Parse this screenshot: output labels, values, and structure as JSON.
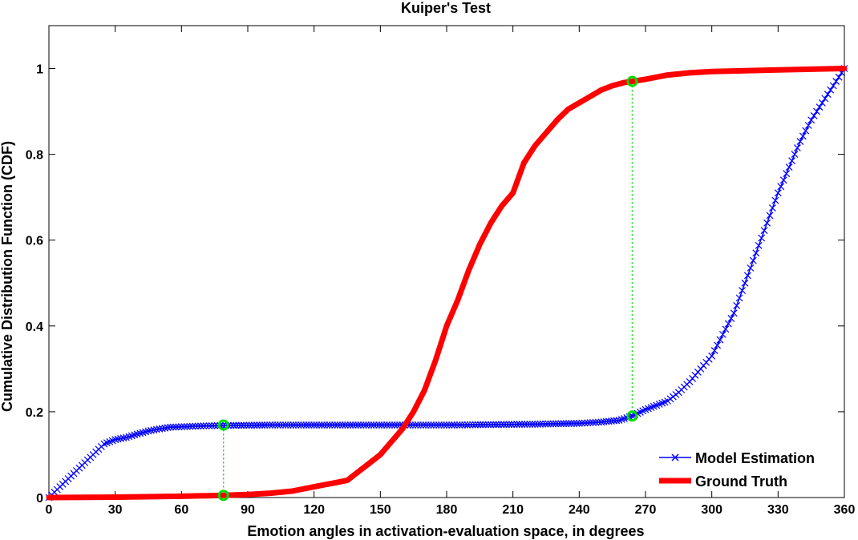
{
  "chart_data": {
    "type": "line",
    "title": "Kuiper's Test",
    "xlabel": "Emotion angles in activation-evaluation space, in degrees",
    "ylabel": "Cumulative Distribution Function (CDF)",
    "xlim": [
      0,
      360
    ],
    "ylim": [
      0,
      1.1
    ],
    "xticks": [
      0,
      30,
      60,
      90,
      120,
      150,
      180,
      210,
      240,
      270,
      300,
      330,
      360
    ],
    "yticks": [
      0,
      0.2,
      0.4,
      0.6,
      0.8,
      1
    ],
    "ytick_labels": [
      "0",
      "0.2",
      "0.4",
      "0.6",
      "0.8",
      "1"
    ],
    "grid": false,
    "legend_position": "bottom-right",
    "series": [
      {
        "name": "Model Estimation",
        "color": "#0000ff",
        "marker": "x",
        "x": [
          0,
          5,
          10,
          15,
          20,
          25,
          30,
          35,
          40,
          45,
          50,
          55,
          60,
          70,
          80,
          100,
          120,
          140,
          160,
          180,
          200,
          220,
          240,
          250,
          258,
          264,
          270,
          275,
          280,
          285,
          290,
          295,
          300,
          305,
          310,
          315,
          320,
          325,
          330,
          335,
          340,
          345,
          350,
          355,
          360
        ],
        "y": [
          0.0,
          0.025,
          0.05,
          0.075,
          0.1,
          0.125,
          0.135,
          0.14,
          0.148,
          0.155,
          0.16,
          0.164,
          0.165,
          0.167,
          0.168,
          0.169,
          0.169,
          0.169,
          0.169,
          0.169,
          0.17,
          0.171,
          0.173,
          0.176,
          0.18,
          0.19,
          0.205,
          0.215,
          0.225,
          0.245,
          0.27,
          0.3,
          0.33,
          0.38,
          0.43,
          0.5,
          0.57,
          0.64,
          0.71,
          0.77,
          0.83,
          0.88,
          0.92,
          0.96,
          1.0
        ]
      },
      {
        "name": "Ground Truth",
        "color": "#ff0000",
        "marker": "none",
        "x": [
          0,
          30,
          60,
          79,
          90,
          100,
          110,
          120,
          130,
          135,
          140,
          145,
          150,
          155,
          160,
          165,
          170,
          175,
          180,
          185,
          190,
          195,
          200,
          205,
          210,
          215,
          220,
          225,
          230,
          235,
          240,
          245,
          250,
          255,
          260,
          264,
          270,
          280,
          290,
          300,
          330,
          360
        ],
        "y": [
          0.0,
          0.001,
          0.003,
          0.005,
          0.007,
          0.01,
          0.015,
          0.025,
          0.035,
          0.04,
          0.06,
          0.08,
          0.1,
          0.13,
          0.16,
          0.2,
          0.25,
          0.32,
          0.4,
          0.46,
          0.53,
          0.59,
          0.64,
          0.68,
          0.71,
          0.78,
          0.82,
          0.85,
          0.88,
          0.905,
          0.92,
          0.935,
          0.95,
          0.96,
          0.967,
          0.97,
          0.975,
          0.985,
          0.99,
          0.993,
          0.997,
          1.0
        ]
      }
    ],
    "annotations": [
      {
        "x": 79,
        "y1": 0.005,
        "y2": 0.169,
        "color": "#00dd00"
      },
      {
        "x": 264,
        "y1": 0.19,
        "y2": 0.97,
        "color": "#00dd00"
      }
    ]
  }
}
